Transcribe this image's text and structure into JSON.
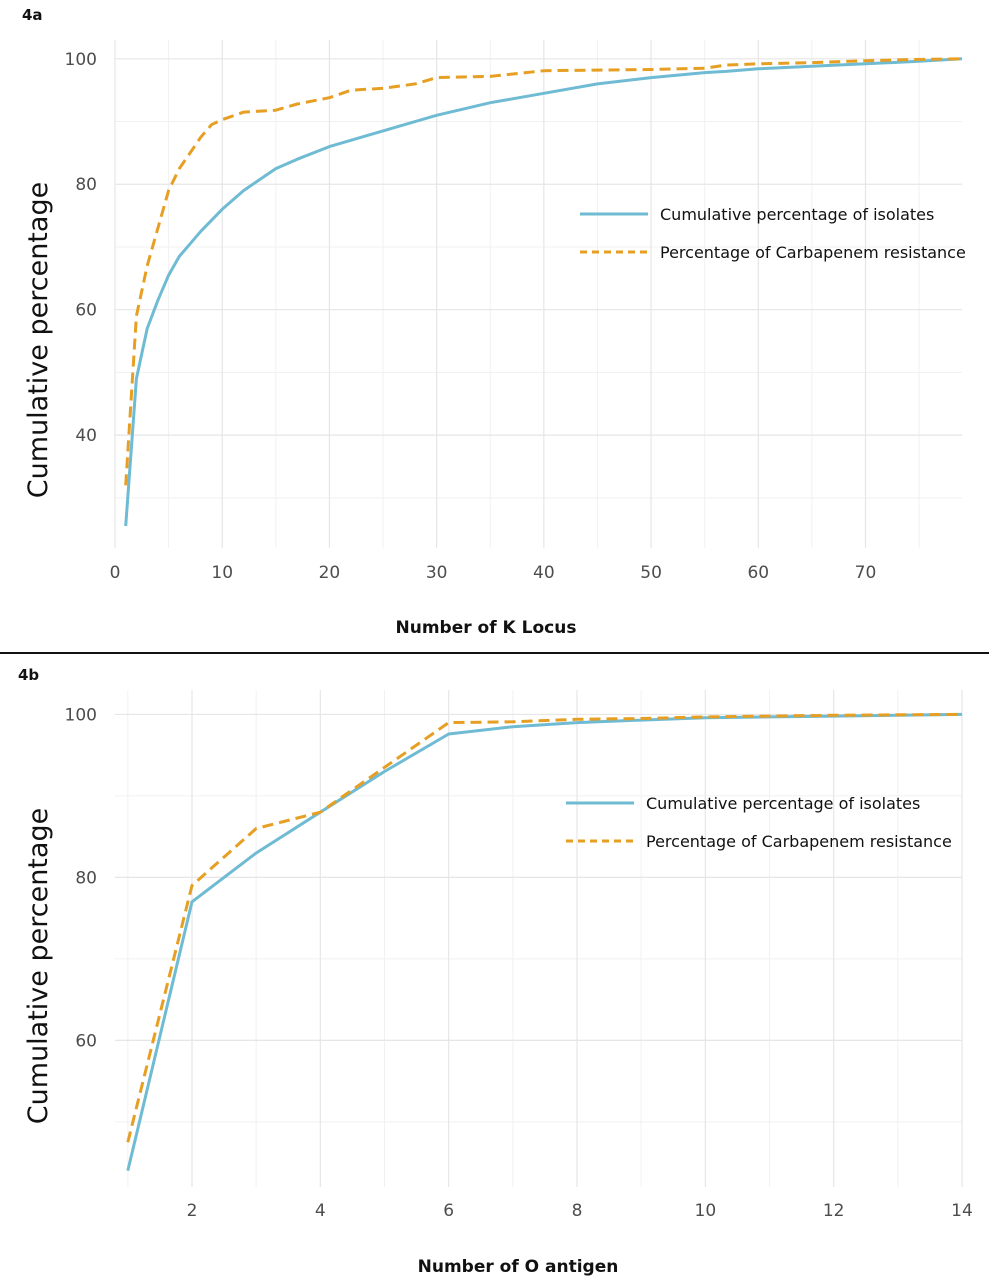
{
  "chart_data": [
    {
      "panel_label": "4a",
      "type": "line",
      "xlabel": "Number of K Locus",
      "ylabel": "Cumulative percentage",
      "xlim": [
        0,
        79
      ],
      "ylim": [
        22,
        103
      ],
      "x_ticks": [
        0,
        10,
        20,
        30,
        40,
        50,
        60,
        70
      ],
      "y_ticks": [
        40,
        60,
        80,
        100
      ],
      "grid": true,
      "legend_position": "right",
      "series": [
        {
          "name": "Cumulative percentage of isolates",
          "color": "#6fbbd3",
          "style": "solid",
          "x": [
            1,
            2,
            3,
            4,
            5,
            6,
            7,
            8,
            10,
            12,
            15,
            17,
            20,
            25,
            30,
            35,
            40,
            45,
            50,
            55,
            57,
            60,
            65,
            70,
            75,
            79
          ],
          "y": [
            25.5,
            49,
            57,
            61.5,
            65.5,
            68.5,
            70.5,
            72.5,
            76,
            79,
            82.5,
            84,
            86,
            88.5,
            91,
            93,
            94.5,
            96,
            97,
            97.8,
            98,
            98.4,
            98.8,
            99.2,
            99.6,
            100
          ]
        },
        {
          "name": "Percentage of Carbapenem resistance",
          "color": "#e69f22",
          "style": "dashed",
          "x": [
            1,
            2,
            3,
            4,
            5,
            6,
            7,
            8,
            9,
            10,
            12,
            15,
            17,
            20,
            22,
            25,
            28,
            30,
            35,
            40,
            45,
            50,
            55,
            57,
            60,
            65,
            70,
            75,
            79
          ],
          "y": [
            32,
            59,
            67,
            73,
            79,
            82.5,
            85,
            87.5,
            89.5,
            90.3,
            91.5,
            91.8,
            92.8,
            93.8,
            95,
            95.3,
            96,
            97,
            97.2,
            98.1,
            98.2,
            98.3,
            98.5,
            99,
            99.2,
            99.4,
            99.7,
            99.9,
            100
          ]
        }
      ]
    },
    {
      "panel_label": "4b",
      "type": "line",
      "xlabel": "Number of O antigen",
      "ylabel": "Cumulative percentage",
      "xlim": [
        0.8,
        14
      ],
      "ylim": [
        42,
        103
      ],
      "x_ticks": [
        2,
        4,
        6,
        8,
        10,
        12,
        14
      ],
      "y_ticks": [
        60,
        80,
        100
      ],
      "grid": true,
      "legend_position": "right",
      "series": [
        {
          "name": "Cumulative percentage of isolates",
          "color": "#6fbbd3",
          "style": "solid",
          "x": [
            1,
            2,
            3,
            4,
            5,
            6,
            7,
            8,
            9,
            10,
            11,
            12,
            13,
            14
          ],
          "y": [
            44,
            77,
            83,
            88,
            93,
            97.6,
            98.5,
            99,
            99.3,
            99.6,
            99.7,
            99.8,
            99.9,
            100
          ]
        },
        {
          "name": "Percentage of Carbapenem resistance",
          "color": "#e69f22",
          "style": "dashed",
          "x": [
            1,
            2,
            3,
            4,
            5,
            6,
            7,
            8,
            9,
            10,
            11,
            12,
            13,
            14
          ],
          "y": [
            47.5,
            79,
            86,
            88,
            93.5,
            99,
            99.1,
            99.4,
            99.5,
            99.7,
            99.8,
            99.9,
            99.95,
            100
          ]
        }
      ]
    }
  ]
}
